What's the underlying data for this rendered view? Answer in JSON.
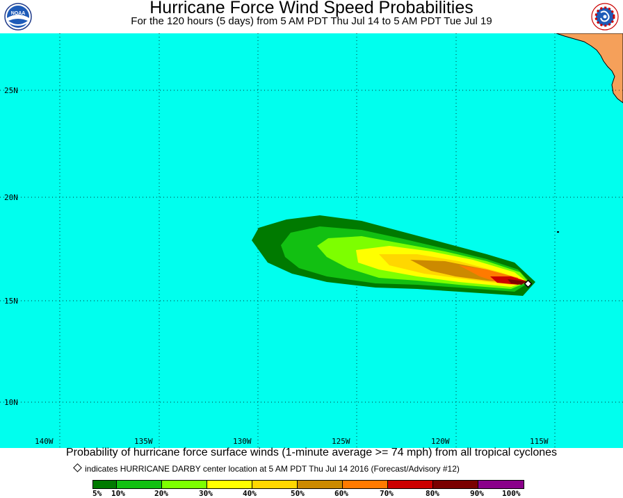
{
  "header": {
    "title": "Hurricane Force Wind Speed Probabilities",
    "subtitle": "For the 120 hours (5 days) from 5 AM PDT Thu Jul 14 to 5 AM PDT Tue Jul 19",
    "left_logo": "NOAA",
    "right_logo": "NATIONAL WEATHER SERVICE"
  },
  "map": {
    "ocean_color": "#00ffee",
    "land_color": "#f5a05a",
    "lat_labels": [
      "25N",
      "20N",
      "15N",
      "10N"
    ],
    "lon_labels": [
      "140W",
      "135W",
      "130W",
      "125W",
      "120W",
      "115W"
    ],
    "storm_marker": "HURRICANE DARBY center"
  },
  "footer": {
    "caption": "Probability of hurricane force surface winds (1-minute average >= 74 mph) from all tropical cyclones",
    "note": "indicates HURRICANE DARBY center location at 5 AM PDT Thu Jul 14 2016 (Forecast/Advisory #12)"
  },
  "legend": {
    "colors": [
      "#007a00",
      "#12c012",
      "#7dff00",
      "#ffff00",
      "#ffd700",
      "#cc8a00",
      "#ff7a00",
      "#cc0000",
      "#7a0000",
      "#8a008a"
    ],
    "labels": [
      "5%",
      "10%",
      "20%",
      "30%",
      "40%",
      "50%",
      "60%",
      "70%",
      "80%",
      "90%",
      "100%"
    ]
  }
}
